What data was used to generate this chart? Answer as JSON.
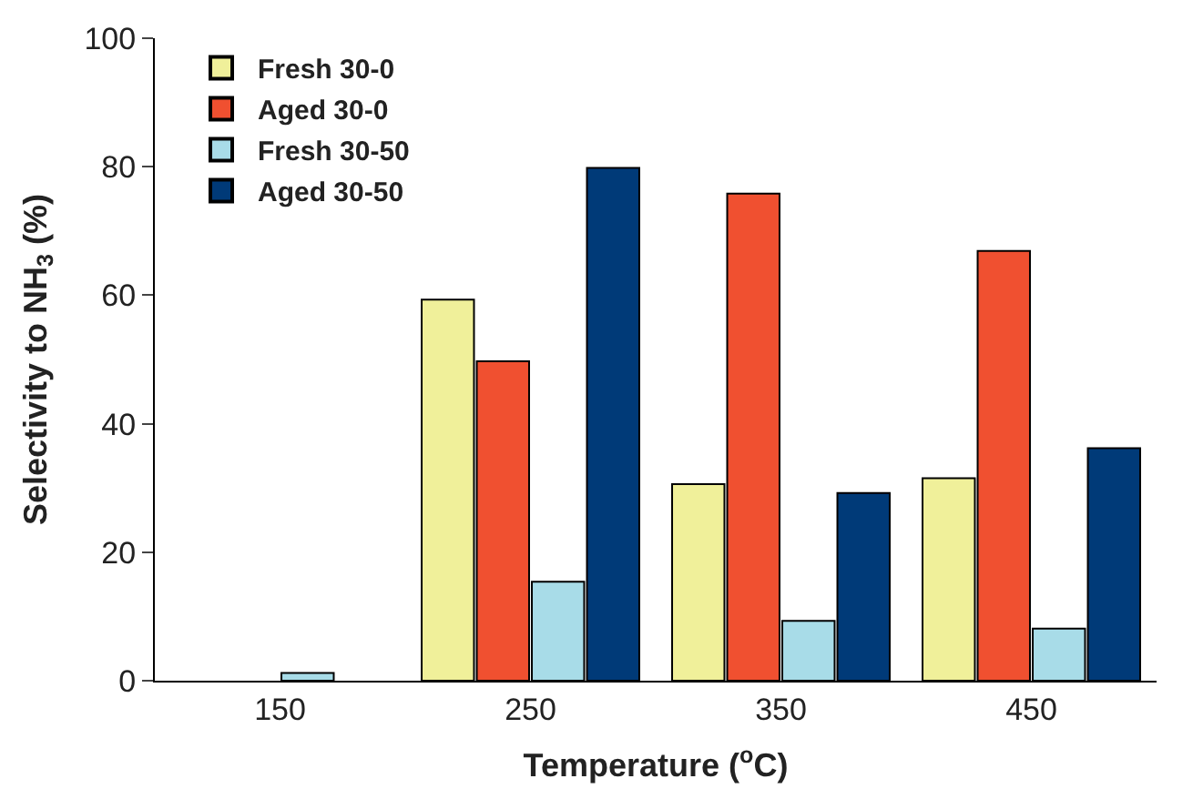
{
  "chart_data": {
    "type": "bar",
    "categories": [
      "150",
      "250",
      "350",
      "450"
    ],
    "series": [
      {
        "name": "Fresh 30-0",
        "color": "#f0f09a",
        "values": [
          null,
          59.3,
          30.6,
          31.5
        ]
      },
      {
        "name": "Aged 30-0",
        "color": "#f05030",
        "values": [
          null,
          49.7,
          75.8,
          66.9
        ]
      },
      {
        "name": "Fresh 30-50",
        "color": "#a8dce8",
        "values": [
          1.2,
          15.4,
          9.3,
          8.1
        ]
      },
      {
        "name": "Aged 30-50",
        "color": "#003a78",
        "values": [
          null,
          79.8,
          29.2,
          36.2
        ]
      }
    ],
    "xlabel": "Temperature ($^{o}$C)",
    "ylabel": "Selectivity to NH$_{3}$ (%)",
    "ylim": [
      0,
      100
    ],
    "yticks": [
      0,
      20,
      40,
      60,
      80,
      100
    ],
    "legend": "top left"
  }
}
